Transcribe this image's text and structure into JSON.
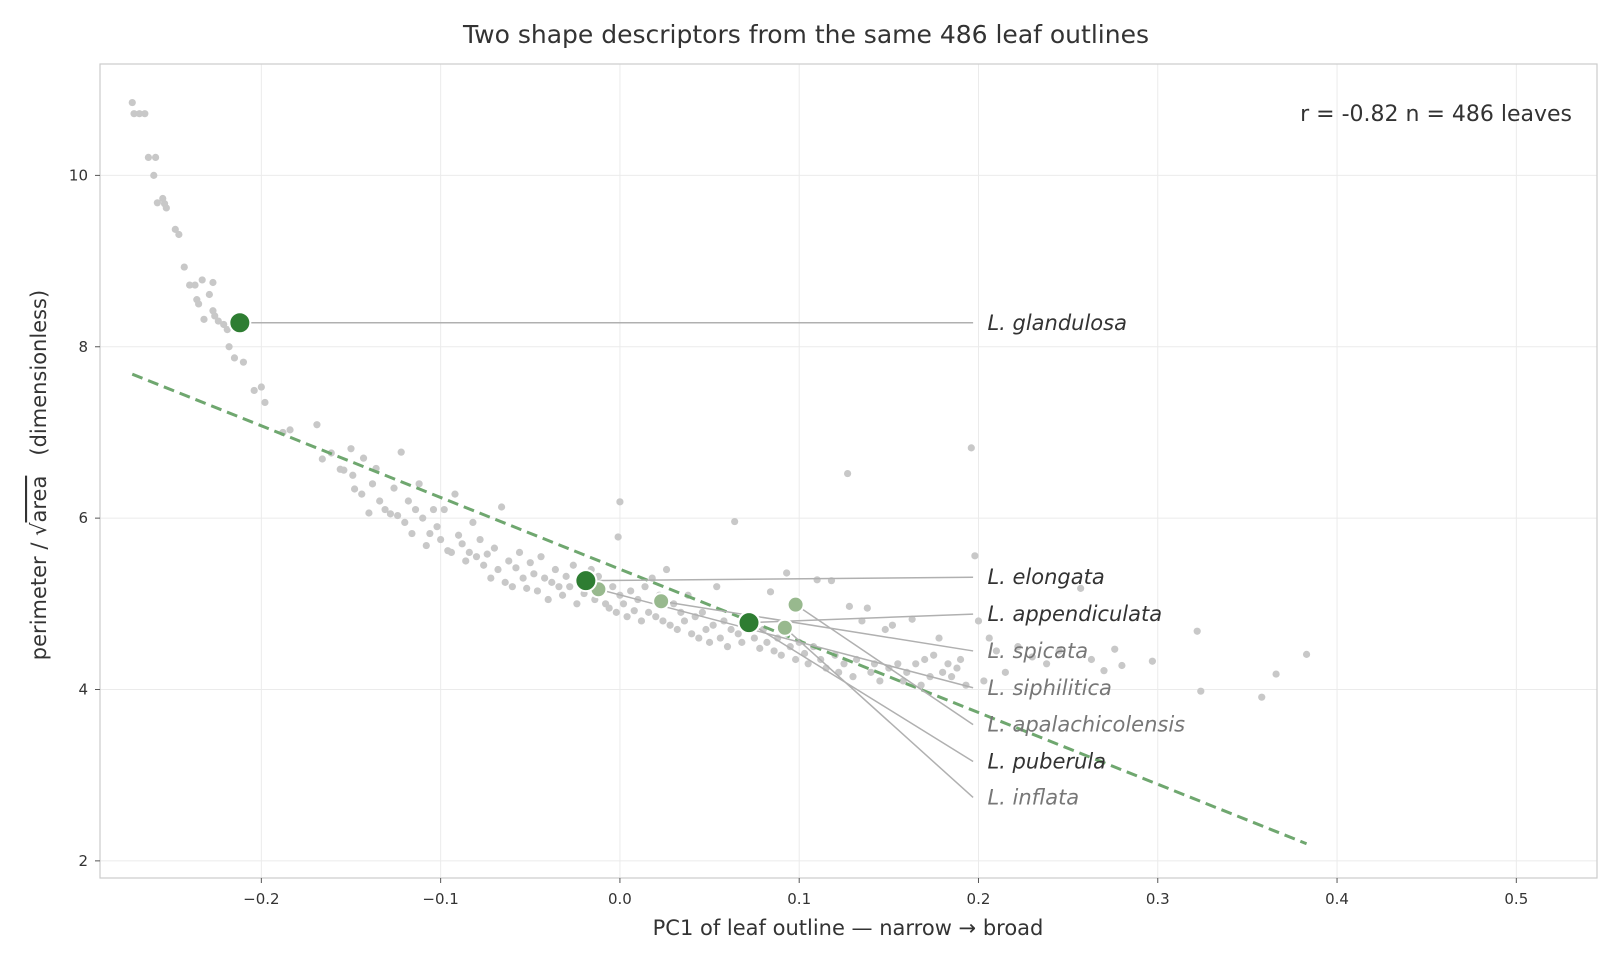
{
  "chart_data": {
    "type": "scatter",
    "title": "Two shape descriptors from the same 486 leaf outlines",
    "xlabel": "PC1 of leaf outline  —  narrow  →  broad",
    "ylabel_prefix": "perimeter / √",
    "ylabel_over": "area",
    "ylabel_suffix": "   (dimensionless)",
    "annotation": "r = -0.82   n = 486 leaves",
    "xlim": [
      -0.29,
      0.545
    ],
    "ylim": [
      1.8,
      11.3
    ],
    "x_ticks": [
      -0.2,
      -0.1,
      0.0,
      0.1,
      0.2,
      0.3,
      0.4,
      0.5
    ],
    "x_tick_labels": [
      "−0.2",
      "−0.1",
      "0.0",
      "0.1",
      "0.2",
      "0.3",
      "0.4",
      "0.5"
    ],
    "y_ticks": [
      2,
      4,
      6,
      8,
      10
    ],
    "y_tick_labels": [
      "2",
      "4",
      "6",
      "8",
      "10"
    ],
    "grid": true,
    "colors": {
      "background_points": "#c8c8c8",
      "highlight_dark": "#2e7d32",
      "highlight_light": "#98b98e",
      "trend_line": "#6fa76f",
      "leader_line": "#b0b0b0",
      "label_dark": "#333333",
      "label_light": "#777777",
      "grid": "#ebebeb",
      "frame": "#cccccc"
    },
    "trend_line": {
      "x": [
        -0.272,
        0.383
      ],
      "y": [
        7.68,
        2.2
      ]
    },
    "highlighted": [
      {
        "label": "L. glandulosa",
        "x": -0.212,
        "y": 8.28,
        "shade": "dark",
        "label_y": 8.28
      },
      {
        "label": "L. elongata",
        "x": -0.019,
        "y": 5.27,
        "shade": "dark",
        "label_y": 5.31
      },
      {
        "label": "L. appendiculata",
        "x": 0.072,
        "y": 4.78,
        "shade": "dark",
        "label_y": 4.88
      },
      {
        "label": "L. spicata",
        "x": 0.023,
        "y": 5.03,
        "shade": "light",
        "label_y": 4.45
      },
      {
        "label": "L. siphilitica",
        "x": -0.012,
        "y": 5.17,
        "shade": "light",
        "label_y": 4.02
      },
      {
        "label": "L. apalachicolensis",
        "x": 0.098,
        "y": 4.99,
        "shade": "light",
        "label_y": 3.59
      },
      {
        "label": "L. puberula",
        "x": 0.072,
        "y": 4.78,
        "shade": "dark",
        "label_y": 3.16
      },
      {
        "label": "L. inflata",
        "x": 0.092,
        "y": 4.72,
        "shade": "light",
        "label_y": 2.74
      }
    ],
    "label_x": 0.205,
    "leader_end_x": 0.197,
    "background_points": [
      [
        -0.272,
        10.85
      ],
      [
        -0.271,
        10.72
      ],
      [
        -0.268,
        10.72
      ],
      [
        -0.265,
        10.72
      ],
      [
        -0.263,
        10.21
      ],
      [
        -0.259,
        10.21
      ],
      [
        -0.26,
        10.0
      ],
      [
        -0.258,
        9.68
      ],
      [
        -0.255,
        9.73
      ],
      [
        -0.254,
        9.67
      ],
      [
        -0.253,
        9.62
      ],
      [
        -0.248,
        9.37
      ],
      [
        -0.246,
        9.31
      ],
      [
        -0.243,
        8.93
      ],
      [
        -0.24,
        8.72
      ],
      [
        -0.237,
        8.72
      ],
      [
        -0.236,
        8.55
      ],
      [
        -0.235,
        8.5
      ],
      [
        -0.233,
        8.78
      ],
      [
        -0.232,
        8.32
      ],
      [
        -0.229,
        8.61
      ],
      [
        -0.227,
        8.75
      ],
      [
        -0.227,
        8.42
      ],
      [
        -0.226,
        8.36
      ],
      [
        -0.224,
        8.3
      ],
      [
        -0.221,
        8.26
      ],
      [
        -0.219,
        8.2
      ],
      [
        -0.218,
        8.0
      ],
      [
        -0.215,
        7.87
      ],
      [
        -0.21,
        7.82
      ],
      [
        -0.204,
        7.49
      ],
      [
        -0.2,
        7.53
      ],
      [
        -0.198,
        7.35
      ],
      [
        -0.188,
        7.0
      ],
      [
        -0.184,
        7.03
      ],
      [
        -0.169,
        7.09
      ],
      [
        -0.166,
        6.69
      ],
      [
        -0.161,
        6.76
      ],
      [
        -0.156,
        6.57
      ],
      [
        -0.154,
        6.56
      ],
      [
        -0.15,
        6.81
      ],
      [
        -0.149,
        6.5
      ],
      [
        -0.148,
        6.34
      ],
      [
        -0.144,
        6.28
      ],
      [
        -0.143,
        6.7
      ],
      [
        -0.14,
        6.06
      ],
      [
        -0.138,
        6.4
      ],
      [
        -0.136,
        6.58
      ],
      [
        -0.134,
        6.2
      ],
      [
        -0.131,
        6.1
      ],
      [
        -0.128,
        6.05
      ],
      [
        -0.126,
        6.35
      ],
      [
        -0.124,
        6.03
      ],
      [
        -0.122,
        6.77
      ],
      [
        -0.12,
        5.95
      ],
      [
        -0.118,
        6.2
      ],
      [
        -0.116,
        5.82
      ],
      [
        -0.114,
        6.1
      ],
      [
        -0.112,
        6.4
      ],
      [
        -0.11,
        6.0
      ],
      [
        -0.108,
        5.68
      ],
      [
        -0.106,
        5.82
      ],
      [
        -0.104,
        6.1
      ],
      [
        -0.102,
        5.9
      ],
      [
        -0.1,
        5.75
      ],
      [
        -0.098,
        6.1
      ],
      [
        -0.096,
        5.62
      ],
      [
        -0.094,
        5.6
      ],
      [
        -0.092,
        6.28
      ],
      [
        -0.09,
        5.8
      ],
      [
        -0.088,
        5.7
      ],
      [
        -0.086,
        5.5
      ],
      [
        -0.084,
        5.6
      ],
      [
        -0.082,
        5.95
      ],
      [
        -0.08,
        5.55
      ],
      [
        -0.078,
        5.75
      ],
      [
        -0.076,
        5.45
      ],
      [
        -0.074,
        5.58
      ],
      [
        -0.072,
        5.3
      ],
      [
        -0.07,
        5.65
      ],
      [
        -0.068,
        5.4
      ],
      [
        -0.066,
        6.13
      ],
      [
        -0.064,
        5.25
      ],
      [
        -0.062,
        5.5
      ],
      [
        -0.06,
        5.2
      ],
      [
        -0.058,
        5.42
      ],
      [
        -0.056,
        5.6
      ],
      [
        -0.054,
        5.3
      ],
      [
        -0.052,
        5.18
      ],
      [
        -0.05,
        5.48
      ],
      [
        -0.048,
        5.35
      ],
      [
        -0.046,
        5.15
      ],
      [
        -0.044,
        5.55
      ],
      [
        -0.042,
        5.3
      ],
      [
        -0.04,
        5.05
      ],
      [
        -0.038,
        5.25
      ],
      [
        -0.036,
        5.4
      ],
      [
        -0.034,
        5.2
      ],
      [
        -0.032,
        5.1
      ],
      [
        -0.03,
        5.32
      ],
      [
        -0.028,
        5.2
      ],
      [
        -0.026,
        5.45
      ],
      [
        -0.024,
        5.0
      ],
      [
        -0.022,
        5.3
      ],
      [
        -0.02,
        5.12
      ],
      [
        -0.018,
        5.25
      ],
      [
        -0.016,
        5.4
      ],
      [
        -0.014,
        5.05
      ],
      [
        -0.012,
        5.32
      ],
      [
        -0.01,
        5.15
      ],
      [
        -0.008,
        5.0
      ],
      [
        -0.006,
        4.95
      ],
      [
        -0.004,
        5.2
      ],
      [
        -0.002,
        4.9
      ],
      [
        0.0,
        5.1
      ],
      [
        0.0,
        6.19
      ],
      [
        -0.001,
        5.78
      ],
      [
        0.002,
        5.0
      ],
      [
        0.004,
        4.85
      ],
      [
        0.006,
        5.15
      ],
      [
        0.008,
        4.92
      ],
      [
        0.01,
        5.05
      ],
      [
        0.012,
        4.8
      ],
      [
        0.014,
        5.2
      ],
      [
        0.016,
        4.9
      ],
      [
        0.018,
        5.3
      ],
      [
        0.02,
        4.85
      ],
      [
        0.022,
        5.1
      ],
      [
        0.024,
        4.8
      ],
      [
        0.026,
        5.4
      ],
      [
        0.028,
        4.75
      ],
      [
        0.03,
        5.0
      ],
      [
        0.032,
        4.7
      ],
      [
        0.034,
        4.9
      ],
      [
        0.036,
        4.8
      ],
      [
        0.038,
        5.1
      ],
      [
        0.04,
        4.65
      ],
      [
        0.042,
        4.85
      ],
      [
        0.044,
        4.6
      ],
      [
        0.046,
        4.9
      ],
      [
        0.048,
        4.7
      ],
      [
        0.05,
        4.55
      ],
      [
        0.052,
        4.75
      ],
      [
        0.054,
        5.2
      ],
      [
        0.056,
        4.6
      ],
      [
        0.058,
        4.8
      ],
      [
        0.06,
        4.5
      ],
      [
        0.062,
        4.7
      ],
      [
        0.064,
        5.96
      ],
      [
        0.066,
        4.65
      ],
      [
        0.068,
        4.55
      ],
      [
        0.07,
        4.85
      ],
      [
        0.075,
        4.6
      ],
      [
        0.078,
        4.48
      ],
      [
        0.08,
        4.7
      ],
      [
        0.082,
        4.55
      ],
      [
        0.084,
        5.14
      ],
      [
        0.086,
        4.45
      ],
      [
        0.088,
        4.6
      ],
      [
        0.09,
        4.4
      ],
      [
        0.093,
        5.36
      ],
      [
        0.095,
        4.5
      ],
      [
        0.098,
        4.35
      ],
      [
        0.1,
        4.55
      ],
      [
        0.103,
        4.42
      ],
      [
        0.105,
        4.3
      ],
      [
        0.108,
        4.5
      ],
      [
        0.11,
        5.28
      ],
      [
        0.112,
        4.35
      ],
      [
        0.115,
        4.25
      ],
      [
        0.118,
        5.27
      ],
      [
        0.12,
        4.4
      ],
      [
        0.122,
        4.2
      ],
      [
        0.125,
        4.3
      ],
      [
        0.127,
        6.52
      ],
      [
        0.128,
        4.97
      ],
      [
        0.13,
        4.15
      ],
      [
        0.132,
        4.35
      ],
      [
        0.135,
        4.8
      ],
      [
        0.138,
        4.95
      ],
      [
        0.14,
        4.2
      ],
      [
        0.142,
        4.3
      ],
      [
        0.145,
        4.1
      ],
      [
        0.148,
        4.7
      ],
      [
        0.15,
        4.25
      ],
      [
        0.152,
        4.75
      ],
      [
        0.155,
        4.3
      ],
      [
        0.158,
        4.1
      ],
      [
        0.16,
        4.2
      ],
      [
        0.163,
        4.82
      ],
      [
        0.165,
        4.3
      ],
      [
        0.168,
        4.05
      ],
      [
        0.17,
        4.35
      ],
      [
        0.173,
        4.15
      ],
      [
        0.175,
        4.4
      ],
      [
        0.178,
        4.6
      ],
      [
        0.18,
        4.2
      ],
      [
        0.183,
        4.3
      ],
      [
        0.185,
        4.15
      ],
      [
        0.188,
        4.25
      ],
      [
        0.19,
        4.35
      ],
      [
        0.193,
        4.05
      ],
      [
        0.196,
        6.82
      ],
      [
        0.198,
        5.56
      ],
      [
        0.2,
        4.8
      ],
      [
        0.203,
        4.1
      ],
      [
        0.206,
        4.6
      ],
      [
        0.21,
        4.45
      ],
      [
        0.215,
        4.2
      ],
      [
        0.222,
        4.5
      ],
      [
        0.23,
        4.38
      ],
      [
        0.238,
        4.3
      ],
      [
        0.245,
        4.45
      ],
      [
        0.257,
        5.18
      ],
      [
        0.263,
        4.35
      ],
      [
        0.27,
        4.22
      ],
      [
        0.276,
        4.47
      ],
      [
        0.28,
        4.28
      ],
      [
        0.297,
        4.33
      ],
      [
        0.322,
        4.68
      ],
      [
        0.324,
        3.98
      ],
      [
        0.358,
        3.91
      ],
      [
        0.366,
        4.18
      ],
      [
        0.383,
        4.41
      ]
    ]
  }
}
